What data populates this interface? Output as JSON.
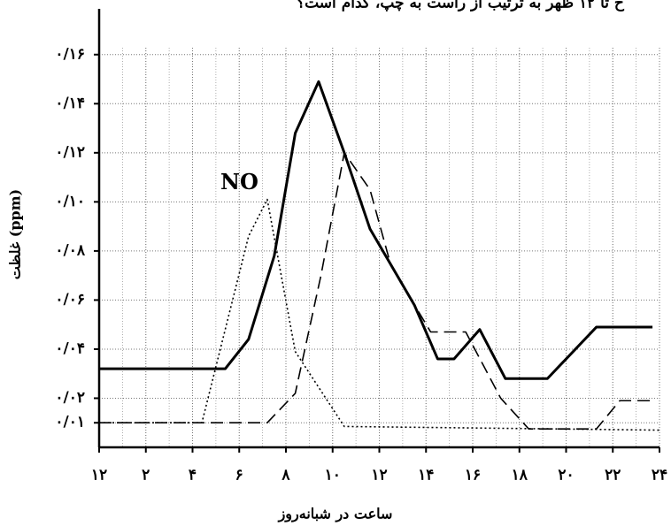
{
  "chart_data": {
    "type": "line",
    "title": "ح تا ۱۲ ظهر به ترتیب از راست به چپ، کدام است؟",
    "x_label": "ساعت در شبانه‌روز",
    "y_label": "غلظت (ppm)",
    "xlim": [
      0,
      24
    ],
    "ylim": [
      0,
      0.17
    ],
    "xticks": [
      {
        "value": 0,
        "label": "۱۲"
      },
      {
        "value": 2,
        "label": "۲"
      },
      {
        "value": 4,
        "label": "۴"
      },
      {
        "value": 6,
        "label": "۶"
      },
      {
        "value": 8,
        "label": "۸"
      },
      {
        "value": 10,
        "label": "۱۰"
      },
      {
        "value": 12,
        "label": "۱۲"
      },
      {
        "value": 14,
        "label": "۱۴"
      },
      {
        "value": 16,
        "label": "۱۶"
      },
      {
        "value": 18,
        "label": "۱۸"
      },
      {
        "value": 20,
        "label": "۲۰"
      },
      {
        "value": 22,
        "label": "۲۲"
      },
      {
        "value": 24,
        "label": "۲۴"
      }
    ],
    "yticks": [
      {
        "value": 0.16,
        "label": "۰/۱۶"
      },
      {
        "value": 0.14,
        "label": "۰/۱۴"
      },
      {
        "value": 0.12,
        "label": "۰/۱۲"
      },
      {
        "value": 0.1,
        "label": "۰/۱۰"
      },
      {
        "value": 0.08,
        "label": "۰/۰۸"
      },
      {
        "value": 0.06,
        "label": "۰/۰۶"
      },
      {
        "value": 0.04,
        "label": "۰/۰۴"
      },
      {
        "value": 0.02,
        "label": "۰/۰۲"
      },
      {
        "value": 0.01,
        "label": "۰/۰۱"
      }
    ],
    "grid": true,
    "series": [
      {
        "color": "#000000",
        "line_style": "solid",
        "x": [
          0,
          5.4,
          6.4,
          7.5,
          8.4,
          9.4,
          10.5,
          11.6,
          13.5,
          14.5,
          15.2,
          16.3,
          17.4,
          19.2,
          21.3,
          23.7
        ],
        "values": [
          0.032,
          0.032,
          0.044,
          0.078,
          0.128,
          0.149,
          0.12,
          0.089,
          0.058,
          0.036,
          0.036,
          0.048,
          0.028,
          0.028,
          0.049,
          0.049
        ]
      },
      {
        "color": "#000000",
        "line_style": "dashed",
        "x": [
          0,
          7.2,
          8.4,
          9.5,
          10.5,
          11.6,
          12.5,
          14.2,
          15.7,
          17.2,
          18.4,
          21.3,
          22.3,
          23.7
        ],
        "values": [
          0.01,
          0.01,
          0.022,
          0.07,
          0.12,
          0.105,
          0.074,
          0.047,
          0.047,
          0.02,
          0.0075,
          0.0075,
          0.019,
          0.019
        ]
      },
      {
        "name": "NO",
        "color": "#000000",
        "line_style": "dotted",
        "x": [
          0,
          4.4,
          6.4,
          7.2,
          8.4,
          10.5,
          24
        ],
        "values": [
          0.01,
          0.01,
          0.086,
          0.101,
          0.039,
          0.0085,
          0.007
        ]
      }
    ]
  }
}
